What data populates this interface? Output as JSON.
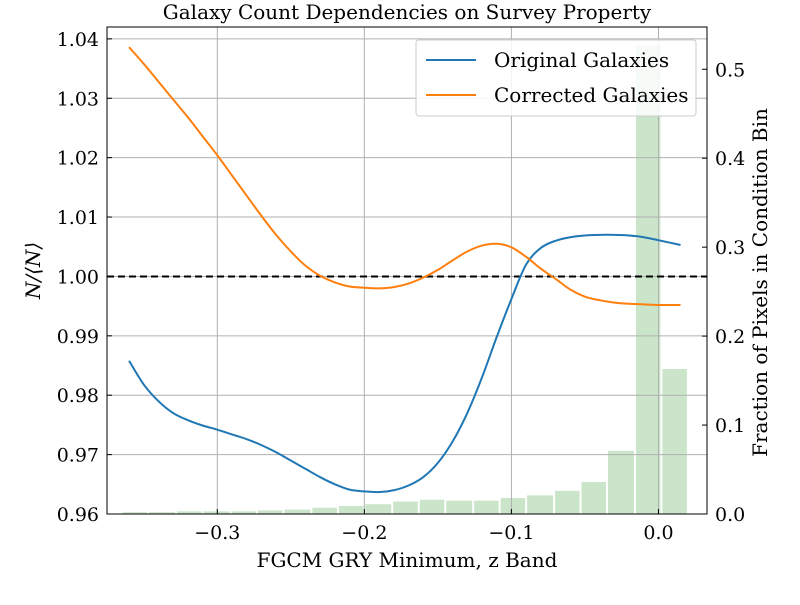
{
  "chart_data": {
    "type": "line",
    "title": "Galaxy Count Dependencies on Survey Property",
    "xlabel": "FGCM GRY Minimum, z Band",
    "ylabel": "N/⟨N⟩",
    "y2label": "Fraction of Pixels in Condition Bin",
    "xlim": [
      -0.375,
      0.033
    ],
    "ylim": [
      0.96,
      1.042
    ],
    "y2lim": [
      0.0,
      0.5475
    ],
    "xticks": [
      -0.3,
      -0.2,
      -0.1,
      0.0
    ],
    "xtick_labels": [
      "−0.3",
      "−0.2",
      "−0.1",
      "0.0"
    ],
    "yticks": [
      0.96,
      0.97,
      0.98,
      0.99,
      1.0,
      1.01,
      1.02,
      1.03,
      1.04
    ],
    "ytick_labels": [
      "0.96",
      "0.97",
      "0.98",
      "0.99",
      "1.00",
      "1.01",
      "1.02",
      "1.03",
      "1.04"
    ],
    "y2ticks": [
      0.0,
      0.1,
      0.2,
      0.3,
      0.4,
      0.5
    ],
    "y2tick_labels": [
      "0.0",
      "0.1",
      "0.2",
      "0.3",
      "0.4",
      "0.5"
    ],
    "grid": true,
    "legend_position": "top-right",
    "reference_line": {
      "y": 1.0,
      "style": "dashed",
      "color": "#000000"
    },
    "series": [
      {
        "name": "Original Galaxies",
        "color": "#1f77b4",
        "x": [
          -0.36,
          -0.35,
          -0.34,
          -0.33,
          -0.32,
          -0.31,
          -0.3,
          -0.29,
          -0.28,
          -0.27,
          -0.26,
          -0.25,
          -0.24,
          -0.23,
          -0.22,
          -0.21,
          -0.2,
          -0.19,
          -0.18,
          -0.17,
          -0.16,
          -0.15,
          -0.14,
          -0.13,
          -0.12,
          -0.11,
          -0.1,
          -0.09,
          -0.08,
          -0.07,
          -0.06,
          -0.05,
          -0.04,
          -0.03,
          -0.02,
          -0.01,
          0.0,
          0.015
        ],
        "y": [
          0.9858,
          0.9818,
          0.979,
          0.977,
          0.9758,
          0.9749,
          0.9742,
          0.9734,
          0.9726,
          0.9716,
          0.9704,
          0.969,
          0.9676,
          0.9662,
          0.965,
          0.9641,
          0.9638,
          0.9637,
          0.964,
          0.9648,
          0.9662,
          0.9686,
          0.9722,
          0.977,
          0.983,
          0.9898,
          0.9962,
          1.002,
          1.0048,
          1.006,
          1.0066,
          1.0069,
          1.007,
          1.007,
          1.0069,
          1.0066,
          1.0061,
          1.0053
        ]
      },
      {
        "name": "Corrected Galaxies",
        "color": "#ff7f0e",
        "x": [
          -0.36,
          -0.35,
          -0.34,
          -0.33,
          -0.32,
          -0.31,
          -0.3,
          -0.29,
          -0.28,
          -0.27,
          -0.26,
          -0.25,
          -0.24,
          -0.23,
          -0.22,
          -0.21,
          -0.2,
          -0.19,
          -0.18,
          -0.17,
          -0.16,
          -0.15,
          -0.14,
          -0.13,
          -0.12,
          -0.11,
          -0.1,
          -0.09,
          -0.08,
          -0.07,
          -0.06,
          -0.05,
          -0.04,
          -0.03,
          -0.02,
          -0.01,
          0.0,
          0.015
        ],
        "y": [
          1.0386,
          1.0358,
          1.0328,
          1.0298,
          1.0268,
          1.0236,
          1.0204,
          1.017,
          1.0136,
          1.0102,
          1.007,
          1.0042,
          1.0018,
          1.0001,
          0.999,
          0.9983,
          0.9981,
          0.998,
          0.9982,
          0.9988,
          0.9998,
          1.0011,
          1.0027,
          1.0042,
          1.0052,
          1.0055,
          1.0049,
          1.0033,
          1.0013,
          0.9996,
          0.9978,
          0.9966,
          0.996,
          0.9956,
          0.9954,
          0.9953,
          0.9952,
          0.9952
        ]
      }
    ],
    "histogram": {
      "color": "#a6d4a6",
      "bin_edges": [
        -0.365,
        -0.347,
        -0.328,
        -0.31,
        -0.291,
        -0.273,
        -0.255,
        -0.236,
        -0.218,
        -0.2,
        -0.181,
        -0.163,
        -0.145,
        -0.126,
        -0.108,
        -0.09,
        -0.071,
        -0.053,
        -0.035,
        -0.016,
        0.002,
        0.02
      ],
      "values": [
        0.002,
        0.002,
        0.003,
        0.003,
        0.003,
        0.004,
        0.005,
        0.007,
        0.009,
        0.011,
        0.014,
        0.016,
        0.015,
        0.015,
        0.018,
        0.021,
        0.026,
        0.036,
        0.071,
        0.527,
        0.163
      ]
    }
  }
}
